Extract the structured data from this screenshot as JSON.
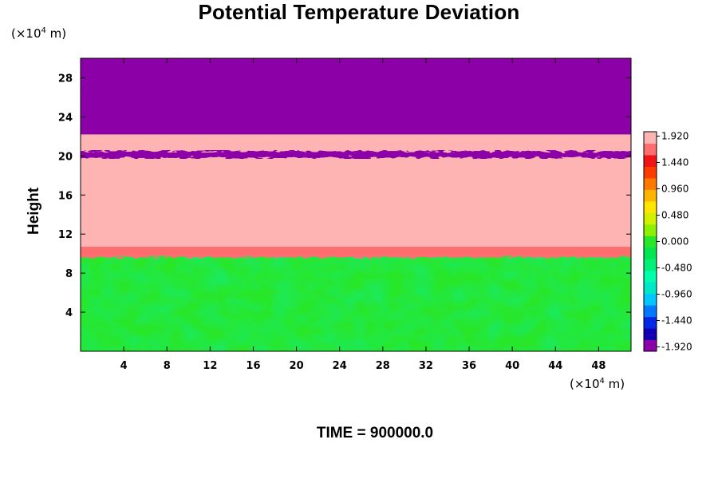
{
  "chart_data": {
    "type": "heatmap",
    "title": "Potential Temperature Deviation",
    "ylabel": "Height",
    "x_unit": {
      "prefix": "(×10",
      "exp": "4",
      "suffix": " m)"
    },
    "y_unit": {
      "prefix": "(×10",
      "exp": "4",
      "suffix": " m)"
    },
    "x_ticks": [
      4,
      8,
      12,
      16,
      20,
      24,
      28,
      32,
      36,
      40,
      44,
      48
    ],
    "y_ticks": [
      4,
      8,
      12,
      16,
      20,
      24,
      28
    ],
    "xlim": [
      0,
      51
    ],
    "ylim": [
      0,
      30
    ],
    "grid": false,
    "colorbar": {
      "min": -2.0,
      "max": 2.0,
      "labels": [
        "1.920",
        "1.440",
        "0.960",
        "0.480",
        "0.000",
        "-0.480",
        "-0.960",
        "-1.440",
        "-1.920"
      ],
      "label_values": [
        1.92,
        1.44,
        0.96,
        0.48,
        0.0,
        -0.48,
        -0.96,
        -1.44,
        -1.92
      ],
      "colors": [
        "#8c00a8",
        "#1400b4",
        "#0028e6",
        "#0078ff",
        "#00c8ff",
        "#00e6c8",
        "#00ffaa",
        "#00f078",
        "#00e650",
        "#28e628",
        "#8cf000",
        "#d2f000",
        "#ffe600",
        "#ffb400",
        "#ff7800",
        "#ff3c00",
        "#f01414",
        "#ff6e6e",
        "#ffb4b4"
      ]
    },
    "layers": [
      {
        "name": "lower",
        "y_from": 0,
        "y_to": 10,
        "value": 0.0
      },
      {
        "name": "front",
        "y_from": 9.6,
        "y_to": 11.0,
        "value": 1.6
      },
      {
        "name": "middle",
        "y_from": 10.7,
        "y_to": 22.2,
        "value": 1.96
      },
      {
        "name": "band",
        "y_from": 19.8,
        "y_to": 20.5,
        "value": -1.96
      },
      {
        "name": "upper",
        "y_from": 22.2,
        "y_to": 30,
        "value": -1.96
      }
    ]
  },
  "footer": {
    "time_label": "TIME = 900000.0"
  }
}
